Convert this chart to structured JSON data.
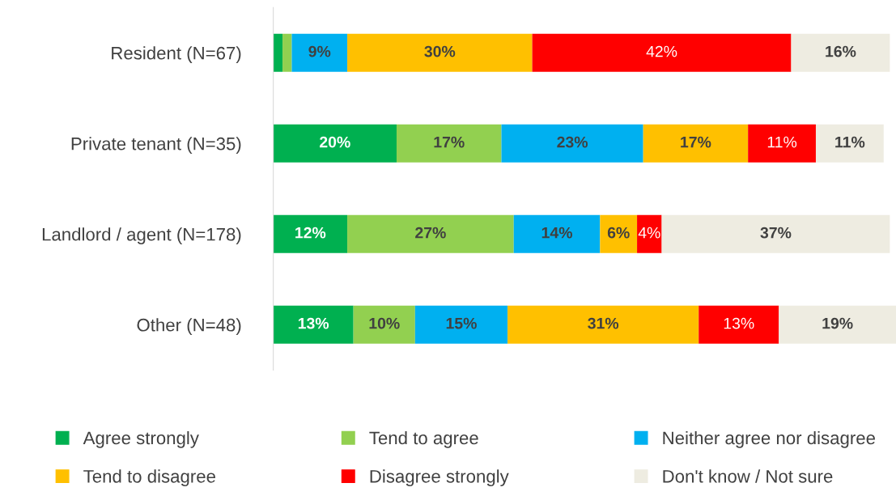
{
  "chart_data": {
    "type": "bar",
    "orientation": "horizontal",
    "stacked": true,
    "legend": "bottom",
    "grid": false,
    "categories": [
      "Resident (N=67)",
      "Private tenant (N=35)",
      "Landlord / agent (N=178)",
      "Other (N=48)"
    ],
    "xlim": [
      0,
      101
    ],
    "series": [
      {
        "name": "Agree strongly",
        "color": "#00b050",
        "values": [
          1.5,
          20,
          12,
          13
        ],
        "value_labels": [
          null,
          "20%",
          "12%",
          "13%"
        ]
      },
      {
        "name": "Tend to agree",
        "color": "#92d050",
        "values": [
          1.5,
          17,
          27,
          10
        ],
        "value_labels": [
          null,
          "17%",
          "27%",
          "10%"
        ]
      },
      {
        "name": "Neither agree nor disagree",
        "color": "#00b0f0",
        "values": [
          9,
          23,
          14,
          15
        ],
        "value_labels": [
          "9%",
          "23%",
          "14%",
          "15%"
        ]
      },
      {
        "name": "Tend to disagree",
        "color": "#ffc000",
        "values": [
          30,
          17,
          6,
          31
        ],
        "value_labels": [
          "30%",
          "17%",
          "6%",
          "31%"
        ]
      },
      {
        "name": "Disagree strongly",
        "color": "#ff0000",
        "values": [
          42,
          11,
          4,
          13
        ],
        "value_labels": [
          "42%",
          "11%",
          "4%",
          "13%"
        ]
      },
      {
        "name": "Don't know / Not sure",
        "color": "#eeece1",
        "values": [
          16,
          11,
          37,
          19
        ],
        "value_labels": [
          "16%",
          "11%",
          "37%",
          "19%"
        ]
      }
    ]
  }
}
